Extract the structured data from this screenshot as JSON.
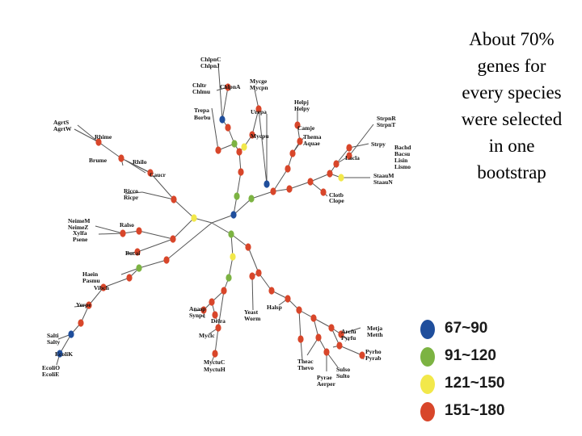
{
  "caption": {
    "lines": [
      "About 70%",
      "genes for",
      "every species",
      "were selected",
      "in one",
      "bootstrap"
    ]
  },
  "legend": {
    "items": [
      {
        "label": "67~90",
        "color": "#1f4e9c"
      },
      {
        "label": "91~120",
        "color": "#7cb342"
      },
      {
        "label": "121~150",
        "color": "#f2e84a"
      },
      {
        "label": "151~180",
        "color": "#d8462a"
      }
    ]
  },
  "tree": {
    "line_color": "#555555",
    "leaves": [
      "ChlpnC",
      "ChlpnJ",
      "Chltr",
      "Chlmu",
      "ChlpnA",
      "Mycge",
      "Mycpn",
      "Urepa",
      "Mycpu",
      "Trepa",
      "Borbu",
      "Helpj",
      "Helpy",
      "Camje",
      "Thema",
      "Aquae",
      "StrpnR",
      "StrpnT",
      "Strpy",
      "Bachd",
      "Bacsu",
      "Lisin",
      "Lismo",
      "Lacla",
      "StaauM",
      "StaauN",
      "Clotb",
      "Clope",
      "AgrtS",
      "AgrtW",
      "Rhime",
      "Brume",
      "Rhilo",
      "Caucr",
      "Ricco",
      "Ricpr",
      "NeimeM",
      "NeimeZ",
      "Xylfa",
      "Psene",
      "Ralso",
      "Bucai",
      "Haein",
      "Pasmu",
      "Vibch",
      "Yerpe",
      "Salti",
      "Salty",
      "EcoliK",
      "EcoliO",
      "EcoliE",
      "Anasp",
      "Synpc",
      "Deira",
      "Myclc",
      "MyctuC",
      "MyctuH",
      "Yeast",
      "Worm",
      "Halsp",
      "Arcfu",
      "Metja",
      "Metth",
      "Pyrfu",
      "Pyrho",
      "Pyrab",
      "Theac",
      "Thevo",
      "Sulso",
      "Sulto",
      "Pyrae",
      "Aerper"
    ]
  }
}
